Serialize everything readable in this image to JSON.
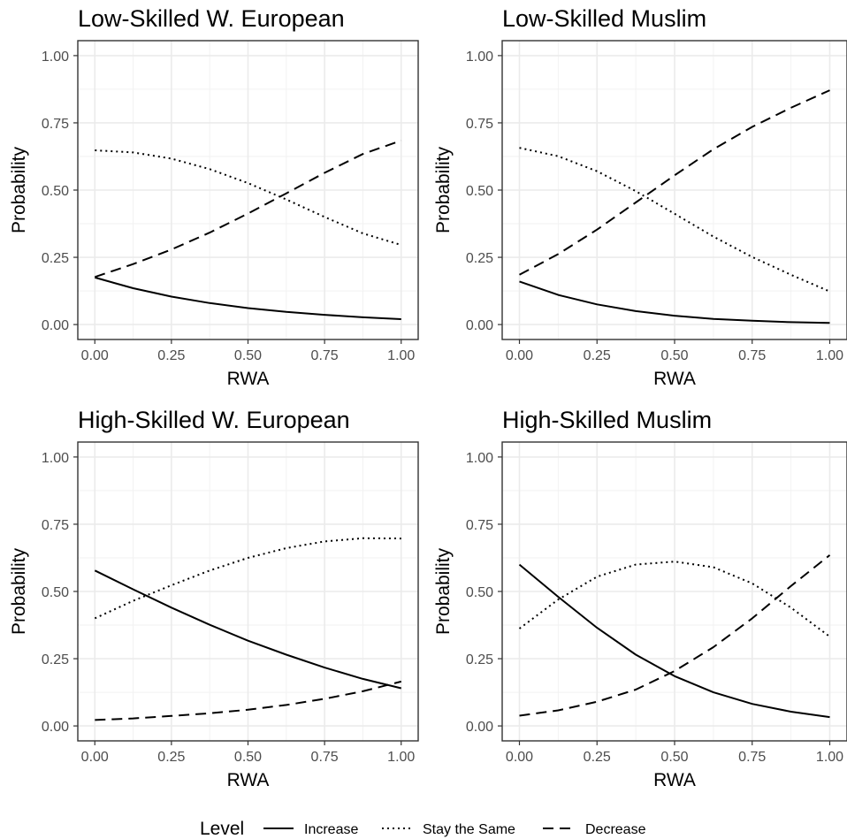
{
  "chart_data": [
    {
      "type": "line",
      "title": "Low-Skilled W. European",
      "xlabel": "RWA",
      "ylabel": "Probability",
      "xlim": [
        0,
        1
      ],
      "ylim": [
        0,
        1
      ],
      "x_ticks": [
        "0.00",
        "0.25",
        "0.50",
        "0.75",
        "1.00"
      ],
      "y_ticks": [
        "0.00",
        "0.25",
        "0.50",
        "0.75",
        "1.00"
      ],
      "x": [
        0,
        0.125,
        0.25,
        0.375,
        0.5,
        0.625,
        0.75,
        0.875,
        1
      ],
      "series": [
        {
          "name": "Increase",
          "values": [
            0.175,
            0.135,
            0.104,
            0.08,
            0.061,
            0.047,
            0.036,
            0.027,
            0.02
          ]
        },
        {
          "name": "Stay the Same",
          "values": [
            0.648,
            0.64,
            0.617,
            0.578,
            0.526,
            0.465,
            0.4,
            0.339,
            0.296
          ]
        },
        {
          "name": "Decrease",
          "values": [
            0.177,
            0.225,
            0.279,
            0.342,
            0.413,
            0.488,
            0.564,
            0.634,
            0.684
          ]
        }
      ]
    },
    {
      "type": "line",
      "title": "Low-Skilled Muslim",
      "xlabel": "RWA",
      "ylabel": "Probability",
      "xlim": [
        0,
        1
      ],
      "ylim": [
        0,
        1
      ],
      "x_ticks": [
        "0.00",
        "0.25",
        "0.50",
        "0.75",
        "1.00"
      ],
      "y_ticks": [
        "0.00",
        "0.25",
        "0.50",
        "0.75",
        "1.00"
      ],
      "x": [
        0,
        0.125,
        0.25,
        0.375,
        0.5,
        0.625,
        0.75,
        0.875,
        1
      ],
      "series": [
        {
          "name": "Increase",
          "values": [
            0.16,
            0.11,
            0.075,
            0.05,
            0.033,
            0.021,
            0.014,
            0.009,
            0.006
          ]
        },
        {
          "name": "Stay the Same",
          "values": [
            0.657,
            0.626,
            0.57,
            0.496,
            0.412,
            0.327,
            0.251,
            0.185,
            0.123
          ]
        },
        {
          "name": "Decrease",
          "values": [
            0.185,
            0.262,
            0.353,
            0.454,
            0.555,
            0.652,
            0.735,
            0.806,
            0.871
          ]
        }
      ]
    },
    {
      "type": "line",
      "title": "High-Skilled W. European",
      "xlabel": "RWA",
      "ylabel": "Probability",
      "xlim": [
        0,
        1
      ],
      "ylim": [
        0,
        1
      ],
      "x_ticks": [
        "0.00",
        "0.25",
        "0.50",
        "0.75",
        "1.00"
      ],
      "y_ticks": [
        "0.00",
        "0.25",
        "0.50",
        "0.75",
        "1.00"
      ],
      "x": [
        0,
        0.125,
        0.25,
        0.375,
        0.5,
        0.625,
        0.75,
        0.875,
        1
      ],
      "series": [
        {
          "name": "Increase",
          "values": [
            0.578,
            0.508,
            0.44,
            0.376,
            0.317,
            0.265,
            0.217,
            0.175,
            0.14
          ]
        },
        {
          "name": "Stay the Same",
          "values": [
            0.4,
            0.465,
            0.523,
            0.578,
            0.625,
            0.661,
            0.686,
            0.698,
            0.697
          ]
        },
        {
          "name": "Decrease",
          "values": [
            0.022,
            0.028,
            0.037,
            0.047,
            0.06,
            0.078,
            0.101,
            0.129,
            0.165
          ]
        }
      ]
    },
    {
      "type": "line",
      "title": "High-Skilled Muslim",
      "xlabel": "RWA",
      "ylabel": "Probability",
      "xlim": [
        0,
        1
      ],
      "ylim": [
        0,
        1
      ],
      "x_ticks": [
        "0.00",
        "0.25",
        "0.50",
        "0.75",
        "1.00"
      ],
      "y_ticks": [
        "0.00",
        "0.25",
        "0.50",
        "0.75",
        "1.00"
      ],
      "x": [
        0,
        0.125,
        0.25,
        0.375,
        0.5,
        0.625,
        0.75,
        0.875,
        1
      ],
      "series": [
        {
          "name": "Increase",
          "values": [
            0.6,
            0.48,
            0.365,
            0.265,
            0.185,
            0.125,
            0.082,
            0.053,
            0.033
          ]
        },
        {
          "name": "Stay the Same",
          "values": [
            0.362,
            0.47,
            0.555,
            0.6,
            0.611,
            0.59,
            0.53,
            0.44,
            0.332
          ]
        },
        {
          "name": "Decrease",
          "values": [
            0.038,
            0.058,
            0.09,
            0.135,
            0.204,
            0.293,
            0.4,
            0.52,
            0.635
          ]
        }
      ]
    }
  ],
  "legend": {
    "title": "Level",
    "placement": "bottom",
    "items": [
      {
        "label": "Increase",
        "style": "solid"
      },
      {
        "label": "Stay the Same",
        "style": "dotted"
      },
      {
        "label": "Decrease",
        "style": "dashed"
      }
    ]
  },
  "colors": {
    "line": "#000000",
    "grid": "#ebebeb",
    "panel_border": "#333333",
    "tick_text": "#4d4d4d"
  }
}
